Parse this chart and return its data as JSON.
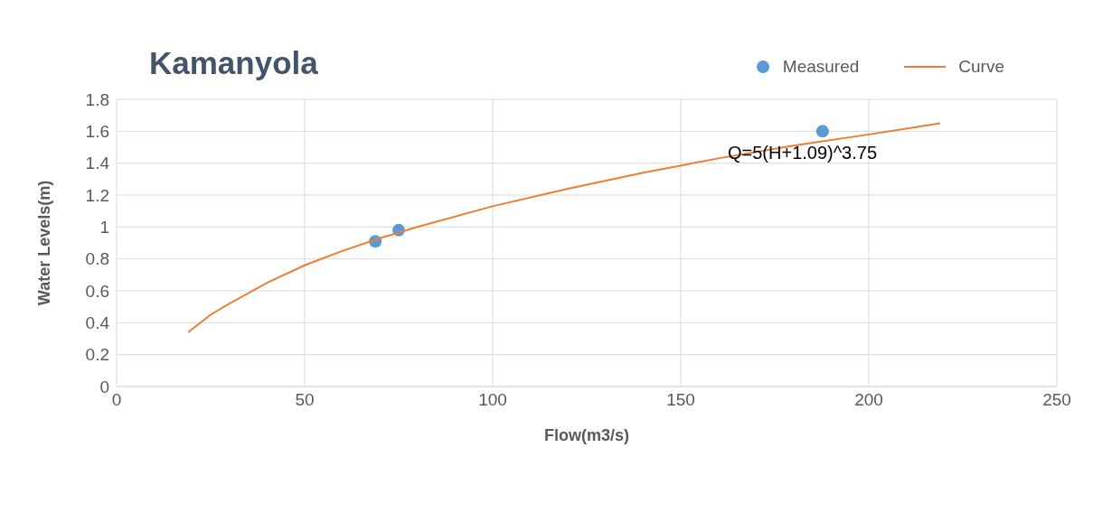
{
  "chart_data": {
    "type": "scatter",
    "title": "Kamanyola",
    "xlabel": "Flow(m3/s)",
    "ylabel": "Water Levels(m)",
    "series": [
      {
        "name": "Measured",
        "color": "#5b9bd5",
        "marker": "circle",
        "x": [
          68.8,
          75,
          187.7
        ],
        "values": [
          0.91,
          0.98,
          1.6
        ]
      },
      {
        "name": "Curve",
        "type": "line",
        "color": "#ed7d31",
        "marker": "none",
        "line_style": "solid",
        "x": [
          19,
          25,
          30,
          40,
          50,
          60,
          70,
          80,
          100,
          120,
          140,
          160,
          180,
          200,
          219
        ],
        "values": [
          0.34,
          0.45,
          0.52,
          0.65,
          0.76,
          0.85,
          0.93,
          1.0,
          1.13,
          1.24,
          1.34,
          1.43,
          1.51,
          1.58,
          1.65
        ]
      }
    ],
    "annotations": [
      "Q=5(H+1.09)^3.75"
    ],
    "xlim": [
      0,
      250
    ],
    "xticks": [
      0,
      50,
      100,
      150,
      200,
      250
    ],
    "ylim": [
      0,
      1.8
    ],
    "yticks": [
      0,
      0.2,
      0.4,
      0.6,
      0.8,
      1,
      1.2,
      1.4,
      1.6,
      1.8
    ],
    "grid": true,
    "legend": "top right"
  }
}
